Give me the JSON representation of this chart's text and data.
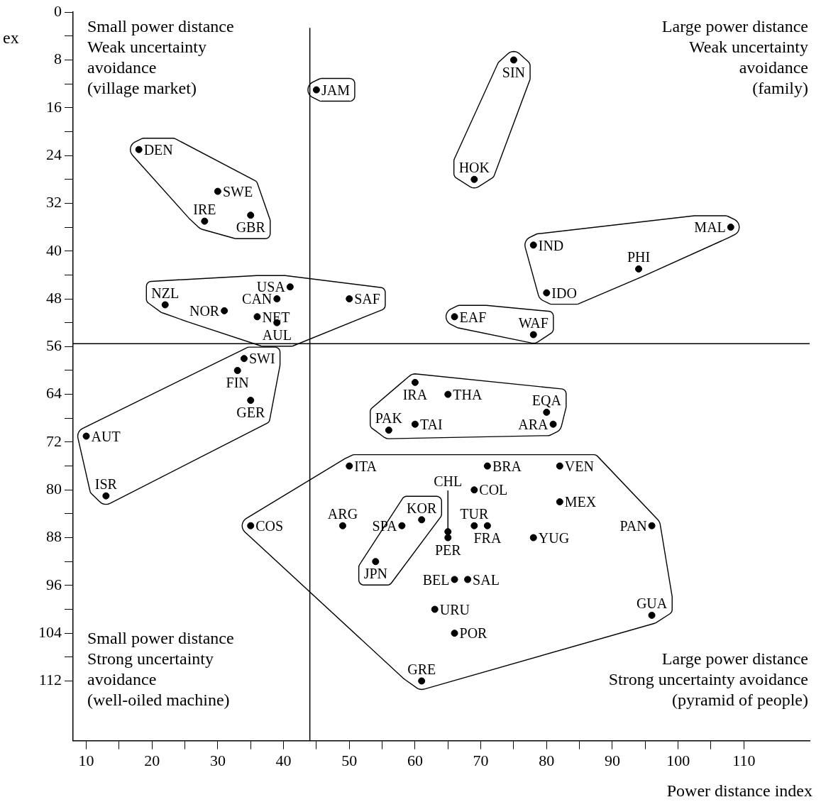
{
  "chart_data": {
    "type": "scatter",
    "xlabel": "Power distance index",
    "ylabel": "ex",
    "marker": "circle",
    "xlim": [
      8,
      120
    ],
    "ylim": [
      122,
      0
    ],
    "xticks": [
      10,
      {
        "value": 15,
        "label": null
      },
      20,
      {
        "value": 25,
        "label": null
      },
      30,
      {
        "value": 35,
        "label": null
      },
      40,
      {
        "value": 45,
        "label": null
      },
      50,
      {
        "value": 55,
        "label": null
      },
      60,
      {
        "value": 65,
        "label": null
      },
      70,
      {
        "value": 75,
        "label": null
      },
      80,
      {
        "value": 85,
        "label": null
      },
      90,
      {
        "value": 95,
        "label": null
      },
      100,
      {
        "value": 105,
        "label": null
      },
      110
    ],
    "yticks": [
      0,
      {
        "value": 4,
        "label": null
      },
      8,
      {
        "value": 12,
        "label": null
      },
      16,
      {
        "value": 20,
        "label": null
      },
      24,
      {
        "value": 28,
        "label": null
      },
      32,
      {
        "value": 36,
        "label": null
      },
      40,
      {
        "value": 44,
        "label": null
      },
      48,
      {
        "value": 52,
        "label": null
      },
      56,
      {
        "value": 60,
        "label": null
      },
      64,
      {
        "value": 68,
        "label": null
      },
      72,
      {
        "value": 76,
        "label": null
      },
      80,
      {
        "value": 84,
        "label": null
      },
      88,
      {
        "value": 92,
        "label": null
      },
      96,
      {
        "value": 100,
        "label": null
      },
      104,
      {
        "value": 108,
        "label": null
      },
      112
    ],
    "ref_lines": [
      {
        "axis": "x",
        "value": 44
      },
      {
        "axis": "y",
        "value": 55.5
      }
    ],
    "series": [
      {
        "color": "#000000",
        "x": [
          45
        ],
        "values": [
          13
        ]
      },
      {
        "color": "#000000",
        "x": [
          75,
          69
        ],
        "values": [
          8,
          28
        ]
      },
      {
        "color": "#000000",
        "x": [
          18,
          30,
          28,
          35
        ],
        "values": [
          23,
          30,
          35,
          34
        ]
      },
      {
        "color": "#000000",
        "x": [
          108,
          78,
          94,
          80
        ],
        "values": [
          36,
          39,
          43,
          47
        ]
      },
      {
        "color": "#000000",
        "x": [
          41,
          39,
          22,
          31,
          36,
          39,
          50
        ],
        "values": [
          46,
          48,
          49,
          50,
          51,
          52,
          48
        ]
      },
      {
        "color": "#000000",
        "x": [
          66,
          78
        ],
        "values": [
          51,
          54
        ]
      },
      {
        "color": "#000000",
        "x": [
          34,
          33,
          35,
          10,
          13
        ],
        "values": [
          58,
          60,
          65,
          71,
          81
        ]
      },
      {
        "color": "#000000",
        "x": [
          60,
          65,
          56,
          60,
          80,
          81
        ],
        "values": [
          62,
          64,
          70,
          69,
          67,
          69
        ]
      },
      {
        "color": "#000000",
        "x": [
          50,
          71,
          82,
          69,
          82,
          49,
          58,
          65,
          65,
          69,
          71,
          78,
          96,
          66,
          68,
          63,
          96,
          66,
          61,
          35
        ],
        "values": [
          76,
          76,
          76,
          80,
          82,
          86,
          86,
          87,
          88,
          86,
          86,
          88,
          86,
          95,
          95,
          100,
          101,
          104,
          112,
          86
        ]
      },
      {
        "color": "#000000",
        "x": [
          61,
          54
        ],
        "values": [
          85,
          92
        ]
      }
    ],
    "annotations": [
      "Small power distance\nWeak uncertainty\navoidance\n(village market)",
      "Large power distance\nWeak uncertainty\navoidance\n(family)",
      "Small power distance\nStrong uncertainty\navoidance\n(well-oiled machine)",
      "Large power distance\nStrong uncertainty avoidance\n(pyramid of people)",
      {
        "text": "JAM",
        "x": 45,
        "y": 13
      },
      {
        "text": "SIN",
        "x": 75,
        "y": 8
      },
      {
        "text": "HOK",
        "x": 69,
        "y": 28
      },
      {
        "text": "DEN",
        "x": 18,
        "y": 23
      },
      {
        "text": "SWE",
        "x": 30,
        "y": 30
      },
      {
        "text": "IRE",
        "x": 28,
        "y": 35
      },
      {
        "text": "GBR",
        "x": 35,
        "y": 34
      },
      {
        "text": "MAL",
        "x": 108,
        "y": 36
      },
      {
        "text": "IND",
        "x": 78,
        "y": 39
      },
      {
        "text": "PHI",
        "x": 94,
        "y": 43
      },
      {
        "text": "IDO",
        "x": 80,
        "y": 47
      },
      {
        "text": "USA",
        "x": 41,
        "y": 46
      },
      {
        "text": "CAN",
        "x": 39,
        "y": 48
      },
      {
        "text": "NZL",
        "x": 22,
        "y": 49
      },
      {
        "text": "NOR",
        "x": 31,
        "y": 50
      },
      {
        "text": "NET",
        "x": 36,
        "y": 51
      },
      {
        "text": "AUL",
        "x": 39,
        "y": 52
      },
      {
        "text": "SAF",
        "x": 50,
        "y": 48
      },
      {
        "text": "EAF",
        "x": 66,
        "y": 51
      },
      {
        "text": "WAF",
        "x": 78,
        "y": 54
      },
      {
        "text": "SWI",
        "x": 34,
        "y": 58
      },
      {
        "text": "FIN",
        "x": 33,
        "y": 60
      },
      {
        "text": "GER",
        "x": 35,
        "y": 65
      },
      {
        "text": "AUT",
        "x": 10,
        "y": 71
      },
      {
        "text": "ISR",
        "x": 13,
        "y": 81
      },
      {
        "text": "IRA",
        "x": 60,
        "y": 62
      },
      {
        "text": "THA",
        "x": 65,
        "y": 64
      },
      {
        "text": "PAK",
        "x": 56,
        "y": 70
      },
      {
        "text": "TAI",
        "x": 60,
        "y": 69
      },
      {
        "text": "EQA",
        "x": 80,
        "y": 67
      },
      {
        "text": "ARA",
        "x": 81,
        "y": 69
      },
      {
        "text": "ITA",
        "x": 50,
        "y": 76
      },
      {
        "text": "BRA",
        "x": 71,
        "y": 76
      },
      {
        "text": "VEN",
        "x": 82,
        "y": 76
      },
      {
        "text": "COL",
        "x": 69,
        "y": 80
      },
      {
        "text": "MEX",
        "x": 82,
        "y": 82
      },
      {
        "text": "ARG",
        "x": 49,
        "y": 86
      },
      {
        "text": "SPA",
        "x": 58,
        "y": 86
      },
      {
        "text": "CHL",
        "x": 65,
        "y": 87
      },
      {
        "text": "PER",
        "x": 65,
        "y": 88
      },
      {
        "text": "TUR",
        "x": 69,
        "y": 86
      },
      {
        "text": "FRA",
        "x": 71,
        "y": 86
      },
      {
        "text": "YUG",
        "x": 78,
        "y": 88
      },
      {
        "text": "PAN",
        "x": 96,
        "y": 86
      },
      {
        "text": "BEL",
        "x": 66,
        "y": 95
      },
      {
        "text": "SAL",
        "x": 68,
        "y": 95
      },
      {
        "text": "URU",
        "x": 63,
        "y": 100
      },
      {
        "text": "GUA",
        "x": 96,
        "y": 101
      },
      {
        "text": "POR",
        "x": 66,
        "y": 104
      },
      {
        "text": "GRE",
        "x": 61,
        "y": 112
      },
      {
        "text": "COS",
        "x": 35,
        "y": 86
      },
      {
        "text": "KOR",
        "x": 61,
        "y": 85
      },
      {
        "text": "JPN",
        "x": 54,
        "y": 92
      }
    ]
  }
}
